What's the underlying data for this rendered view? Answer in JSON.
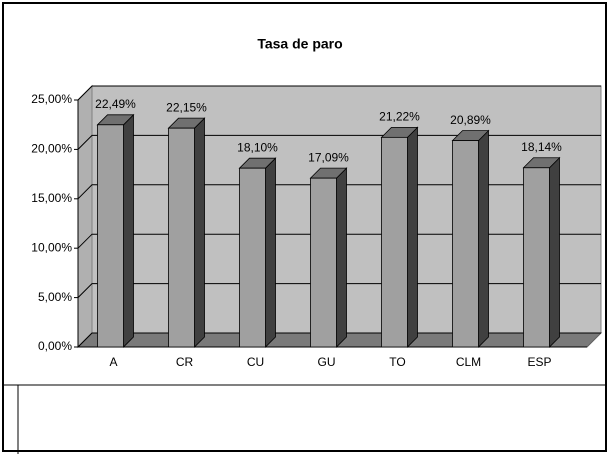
{
  "chart_data": {
    "type": "bar3d",
    "title": "Tasa de paro",
    "categories": [
      "A",
      "CR",
      "CU",
      "GU",
      "TO",
      "CLM",
      "ESP"
    ],
    "values": [
      22.49,
      22.15,
      18.1,
      17.09,
      21.22,
      20.89,
      18.14
    ],
    "value_labels": [
      "22,49%",
      "22,15%",
      "18,10%",
      "17,09%",
      "21,22%",
      "20,89%",
      "18,14%"
    ],
    "color": "#a0a0a0",
    "ylim": [
      0,
      25
    ],
    "yticks": [
      {
        "value": 0,
        "label": "0,00%"
      },
      {
        "value": 5,
        "label": "5,00%"
      },
      {
        "value": 10,
        "label": "10,00%"
      },
      {
        "value": 15,
        "label": "15,00%"
      },
      {
        "value": 20,
        "label": "20,00%"
      },
      {
        "value": 25,
        "label": "25,00%"
      }
    ],
    "grid": true
  }
}
